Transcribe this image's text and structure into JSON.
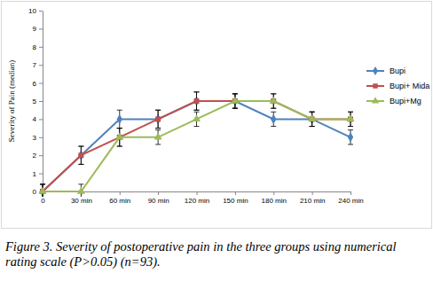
{
  "chart_data": {
    "type": "line",
    "caption": "Figure 3. Severity of postoperative pain in the three groups using numerical rating scale (P>0.05) (n=93).",
    "y_label": "Severity of Pain (median)",
    "categories": [
      "0",
      "30 min",
      "60 min",
      "90 min",
      "120 min",
      "150 min",
      "180 min",
      "210 min",
      "240 min"
    ],
    "ylim": [
      0,
      10
    ],
    "yticks": [
      0,
      1,
      2,
      3,
      4,
      5,
      6,
      7,
      8,
      9,
      10
    ],
    "grid": false,
    "legend": "right",
    "series": [
      {
        "name": "Bupi",
        "color": "#4f81bd",
        "marker": "diamond",
        "values": [
          0,
          2,
          4,
          4,
          5,
          5,
          4,
          4,
          3
        ],
        "errors": [
          0.4,
          0.5,
          0.5,
          0.5,
          0.5,
          0.4,
          0.4,
          0.4,
          0.4
        ]
      },
      {
        "name": "Bupi+ Mida",
        "color": "#c0504d",
        "marker": "square",
        "values": [
          0,
          2,
          3,
          4,
          5,
          5,
          5,
          4,
          4
        ],
        "errors": [
          0.4,
          0.5,
          0.5,
          0.5,
          0.5,
          0.4,
          0.4,
          0.4,
          0.4
        ]
      },
      {
        "name": "Bupi+Mg",
        "color": "#9bbb59",
        "marker": "triangle",
        "values": [
          0,
          0,
          3,
          3,
          4,
          5,
          5,
          4,
          4
        ],
        "errors": [
          0.4,
          0.4,
          0.5,
          0.4,
          0.4,
          0.4,
          0.4,
          0.4,
          0.4
        ]
      }
    ]
  }
}
